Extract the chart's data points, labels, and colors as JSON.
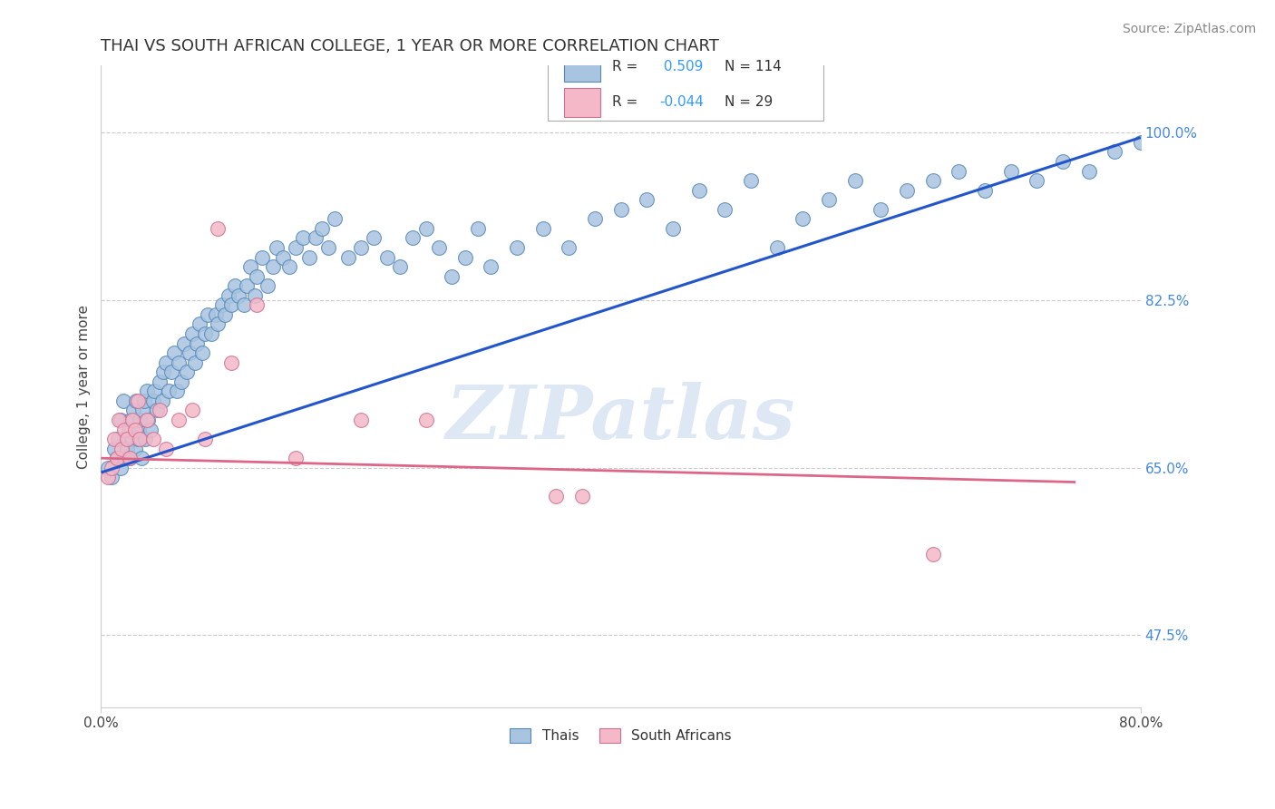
{
  "title": "THAI VS SOUTH AFRICAN COLLEGE, 1 YEAR OR MORE CORRELATION CHART",
  "source": "Source: ZipAtlas.com",
  "xlabel_ticks": [
    "0.0%",
    "80.0%"
  ],
  "ylabel_label": "College, 1 year or more",
  "ylabel_ticks_labels": [
    "47.5%",
    "65.0%",
    "82.5%",
    "100.0%"
  ],
  "ylabel_ticks_vals": [
    0.475,
    0.65,
    0.825,
    1.0
  ],
  "xmin": 0.0,
  "xmax": 0.8,
  "ymin": 0.4,
  "ymax": 1.07,
  "watermark": "ZIPatlas",
  "thai_scatter_color": "#a8c4e0",
  "thai_scatter_edge": "#5588bb",
  "sa_scatter_color": "#f4b8c8",
  "sa_scatter_edge": "#d07090",
  "scatter_size": 130,
  "scatter_alpha": 0.85,
  "scatter_lw": 0.8,
  "thai_trendline_color": "#2255cc",
  "thai_trendline_lw": 2.2,
  "sa_trendline_color": "#dd6688",
  "sa_trendline_lw": 2.0,
  "grid_color": "#cccccc",
  "grid_linestyle": "--",
  "background_color": "#ffffff",
  "title_fontsize": 13,
  "axis_label_fontsize": 11,
  "tick_fontsize": 11,
  "legend_fontsize": 11,
  "source_fontsize": 10,
  "watermark_color": "#c8d8ee",
  "watermark_fontsize": 60,
  "thai_label": "Thais",
  "sa_label": "South Africans",
  "R_thai": 0.509,
  "N_thai": 114,
  "R_sa": -0.044,
  "N_sa": 29,
  "thai_trend_x": [
    0.0,
    0.8
  ],
  "thai_trend_y": [
    0.645,
    0.995
  ],
  "sa_trend_x": [
    0.0,
    0.75
  ],
  "sa_trend_y": [
    0.66,
    0.635
  ],
  "thai_x": [
    0.005,
    0.008,
    0.01,
    0.012,
    0.013,
    0.015,
    0.015,
    0.017,
    0.018,
    0.02,
    0.021,
    0.022,
    0.023,
    0.024,
    0.025,
    0.026,
    0.027,
    0.028,
    0.029,
    0.03,
    0.031,
    0.032,
    0.033,
    0.034,
    0.035,
    0.036,
    0.038,
    0.04,
    0.041,
    0.043,
    0.045,
    0.047,
    0.048,
    0.05,
    0.052,
    0.054,
    0.056,
    0.058,
    0.06,
    0.062,
    0.064,
    0.066,
    0.068,
    0.07,
    0.072,
    0.074,
    0.076,
    0.078,
    0.08,
    0.082,
    0.085,
    0.088,
    0.09,
    0.093,
    0.095,
    0.098,
    0.1,
    0.103,
    0.106,
    0.11,
    0.112,
    0.115,
    0.118,
    0.12,
    0.124,
    0.128,
    0.132,
    0.135,
    0.14,
    0.145,
    0.15,
    0.155,
    0.16,
    0.165,
    0.17,
    0.175,
    0.18,
    0.19,
    0.2,
    0.21,
    0.22,
    0.23,
    0.24,
    0.25,
    0.26,
    0.27,
    0.28,
    0.29,
    0.3,
    0.32,
    0.34,
    0.36,
    0.38,
    0.4,
    0.42,
    0.44,
    0.46,
    0.48,
    0.5,
    0.52,
    0.54,
    0.56,
    0.58,
    0.6,
    0.62,
    0.64,
    0.66,
    0.68,
    0.7,
    0.72,
    0.74,
    0.76,
    0.78,
    0.8
  ],
  "thai_y": [
    0.65,
    0.64,
    0.67,
    0.66,
    0.68,
    0.65,
    0.7,
    0.72,
    0.66,
    0.67,
    0.69,
    0.66,
    0.7,
    0.68,
    0.71,
    0.67,
    0.72,
    0.68,
    0.69,
    0.7,
    0.66,
    0.71,
    0.72,
    0.68,
    0.73,
    0.7,
    0.69,
    0.72,
    0.73,
    0.71,
    0.74,
    0.72,
    0.75,
    0.76,
    0.73,
    0.75,
    0.77,
    0.73,
    0.76,
    0.74,
    0.78,
    0.75,
    0.77,
    0.79,
    0.76,
    0.78,
    0.8,
    0.77,
    0.79,
    0.81,
    0.79,
    0.81,
    0.8,
    0.82,
    0.81,
    0.83,
    0.82,
    0.84,
    0.83,
    0.82,
    0.84,
    0.86,
    0.83,
    0.85,
    0.87,
    0.84,
    0.86,
    0.88,
    0.87,
    0.86,
    0.88,
    0.89,
    0.87,
    0.89,
    0.9,
    0.88,
    0.91,
    0.87,
    0.88,
    0.89,
    0.87,
    0.86,
    0.89,
    0.9,
    0.88,
    0.85,
    0.87,
    0.9,
    0.86,
    0.88,
    0.9,
    0.88,
    0.91,
    0.92,
    0.93,
    0.9,
    0.94,
    0.92,
    0.95,
    0.88,
    0.91,
    0.93,
    0.95,
    0.92,
    0.94,
    0.95,
    0.96,
    0.94,
    0.96,
    0.95,
    0.97,
    0.96,
    0.98,
    0.99
  ],
  "sa_x": [
    0.005,
    0.008,
    0.01,
    0.012,
    0.014,
    0.016,
    0.018,
    0.02,
    0.022,
    0.024,
    0.026,
    0.028,
    0.03,
    0.035,
    0.04,
    0.045,
    0.05,
    0.06,
    0.07,
    0.08,
    0.09,
    0.1,
    0.12,
    0.15,
    0.2,
    0.25,
    0.35,
    0.64,
    0.37
  ],
  "sa_y": [
    0.64,
    0.65,
    0.68,
    0.66,
    0.7,
    0.67,
    0.69,
    0.68,
    0.66,
    0.7,
    0.69,
    0.72,
    0.68,
    0.7,
    0.68,
    0.71,
    0.67,
    0.7,
    0.71,
    0.68,
    0.9,
    0.76,
    0.82,
    0.66,
    0.7,
    0.7,
    0.62,
    0.56,
    0.62
  ]
}
